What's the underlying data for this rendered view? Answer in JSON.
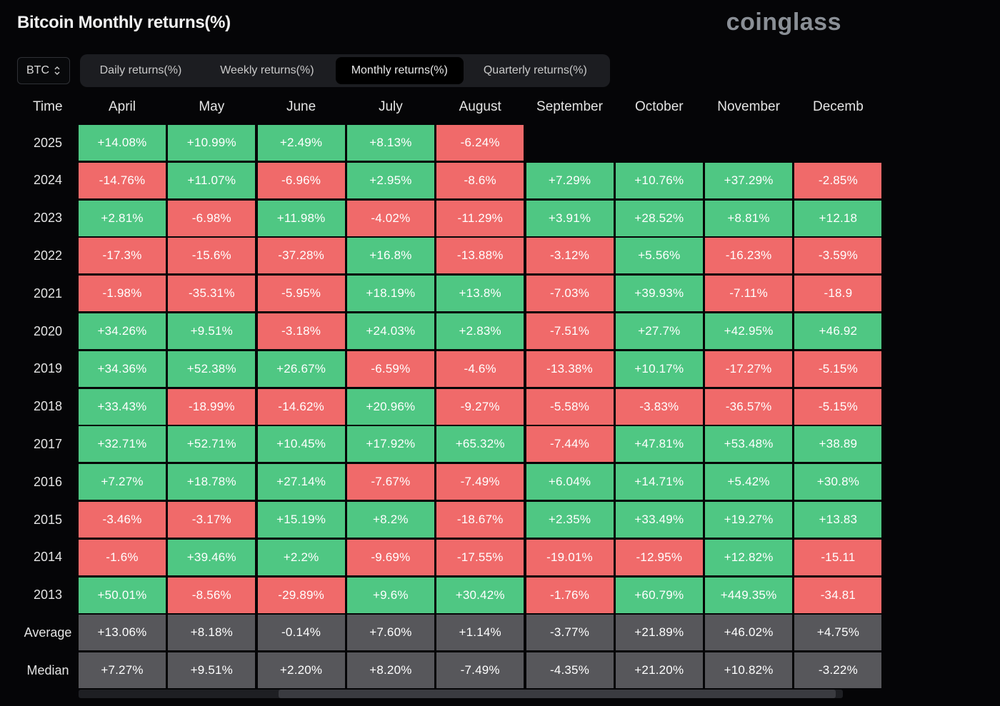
{
  "title": "Bitcoin Monthly returns(%)",
  "brand": "coinglass",
  "asset_select": {
    "value": "BTC"
  },
  "tabs": [
    {
      "label": "Daily returns(%)",
      "active": false
    },
    {
      "label": "Weekly returns(%)",
      "active": false
    },
    {
      "label": "Monthly returns(%)",
      "active": true
    },
    {
      "label": "Quarterly returns(%)",
      "active": false
    }
  ],
  "table": {
    "time_header": "Time",
    "months": [
      "April",
      "May",
      "June",
      "July",
      "August",
      "September",
      "October",
      "November",
      "Decemb"
    ],
    "rows": [
      {
        "label": "2025",
        "values": [
          "+14.08%",
          "+10.99%",
          "+2.49%",
          "+8.13%",
          "-6.24%",
          "",
          "",
          "",
          ""
        ]
      },
      {
        "label": "2024",
        "values": [
          "-14.76%",
          "+11.07%",
          "-6.96%",
          "+2.95%",
          "-8.6%",
          "+7.29%",
          "+10.76%",
          "+37.29%",
          "-2.85%"
        ]
      },
      {
        "label": "2023",
        "values": [
          "+2.81%",
          "-6.98%",
          "+11.98%",
          "-4.02%",
          "-11.29%",
          "+3.91%",
          "+28.52%",
          "+8.81%",
          "+12.18"
        ]
      },
      {
        "label": "2022",
        "values": [
          "-17.3%",
          "-15.6%",
          "-37.28%",
          "+16.8%",
          "-13.88%",
          "-3.12%",
          "+5.56%",
          "-16.23%",
          "-3.59%"
        ]
      },
      {
        "label": "2021",
        "values": [
          "-1.98%",
          "-35.31%",
          "-5.95%",
          "+18.19%",
          "+13.8%",
          "-7.03%",
          "+39.93%",
          "-7.11%",
          "-18.9"
        ]
      },
      {
        "label": "2020",
        "values": [
          "+34.26%",
          "+9.51%",
          "-3.18%",
          "+24.03%",
          "+2.83%",
          "-7.51%",
          "+27.7%",
          "+42.95%",
          "+46.92"
        ]
      },
      {
        "label": "2019",
        "values": [
          "+34.36%",
          "+52.38%",
          "+26.67%",
          "-6.59%",
          "-4.6%",
          "-13.38%",
          "+10.17%",
          "-17.27%",
          "-5.15%"
        ]
      },
      {
        "label": "2018",
        "values": [
          "+33.43%",
          "-18.99%",
          "-14.62%",
          "+20.96%",
          "-9.27%",
          "-5.58%",
          "-3.83%",
          "-36.57%",
          "-5.15%"
        ]
      },
      {
        "label": "2017",
        "values": [
          "+32.71%",
          "+52.71%",
          "+10.45%",
          "+17.92%",
          "+65.32%",
          "-7.44%",
          "+47.81%",
          "+53.48%",
          "+38.89"
        ]
      },
      {
        "label": "2016",
        "values": [
          "+7.27%",
          "+18.78%",
          "+27.14%",
          "-7.67%",
          "-7.49%",
          "+6.04%",
          "+14.71%",
          "+5.42%",
          "+30.8%"
        ]
      },
      {
        "label": "2015",
        "values": [
          "-3.46%",
          "-3.17%",
          "+15.19%",
          "+8.2%",
          "-18.67%",
          "+2.35%",
          "+33.49%",
          "+19.27%",
          "+13.83"
        ]
      },
      {
        "label": "2014",
        "values": [
          "-1.6%",
          "+39.46%",
          "+2.2%",
          "-9.69%",
          "-17.55%",
          "-19.01%",
          "-12.95%",
          "+12.82%",
          "-15.11"
        ]
      },
      {
        "label": "2013",
        "values": [
          "+50.01%",
          "-8.56%",
          "-29.89%",
          "+9.6%",
          "+30.42%",
          "-1.76%",
          "+60.79%",
          "+449.35%",
          "-34.81"
        ]
      }
    ],
    "stats": [
      {
        "label": "Average",
        "values": [
          "+13.06%",
          "+8.18%",
          "-0.14%",
          "+7.60%",
          "+1.14%",
          "-3.77%",
          "+21.89%",
          "+46.02%",
          "+4.75%"
        ]
      },
      {
        "label": "Median",
        "values": [
          "+7.27%",
          "+9.51%",
          "+2.20%",
          "+8.20%",
          "-7.49%",
          "-4.35%",
          "+21.20%",
          "+10.82%",
          "-3.22%"
        ]
      }
    ]
  },
  "colors": {
    "positive": "#4fc783",
    "negative": "#f06a6a",
    "stat": "#57575b",
    "background": "#050507"
  },
  "icons": {
    "select_chevron": "chevron-up-down-icon"
  }
}
